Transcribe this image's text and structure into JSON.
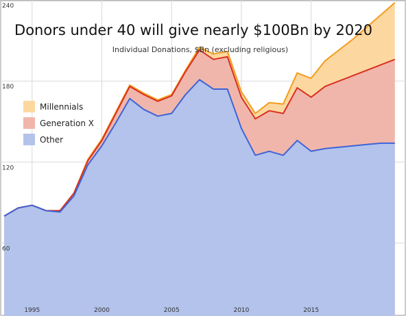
{
  "chart_data": {
    "type": "area",
    "title": "Donors under 40 will give nearly $100Bn by 2020",
    "subtitle": "Individual Donations, $Bn (excluding religious)",
    "xlabel": "",
    "ylabel": "",
    "xlim": [
      1992.7,
      2021.8
    ],
    "ylim": [
      6,
      240
    ],
    "y_ticks": [
      60,
      120,
      180,
      240
    ],
    "x_ticks": [
      1995,
      2000,
      2005,
      2010,
      2015
    ],
    "grid": true,
    "legend_position": "left",
    "x": [
      1993,
      1994,
      1995,
      1996,
      1997,
      1998,
      1999,
      2000,
      2001,
      2002,
      2003,
      2004,
      2005,
      2006,
      2007,
      2008,
      2009,
      2010,
      2011,
      2012,
      2013,
      2014,
      2015,
      2016,
      2017,
      2018,
      2019,
      2020,
      2021
    ],
    "series": [
      {
        "name": "Other",
        "color": "#3f63d6",
        "fill": "#b3c3ec",
        "values": [
          80,
          86,
          88,
          84,
          83,
          95,
          118,
          132,
          149,
          167,
          159,
          154,
          156,
          170,
          181,
          174,
          174,
          145,
          125,
          128,
          125,
          136,
          128,
          130,
          131,
          132,
          133,
          134,
          134
        ]
      },
      {
        "name": "Generation X",
        "color": "#d92f20",
        "fill": "#f1b6ab",
        "values": [
          80,
          86,
          88,
          84,
          84,
          97,
          121,
          136,
          156,
          176,
          170,
          165,
          169,
          187,
          203,
          196,
          198,
          168,
          152,
          158,
          156,
          175,
          168,
          176,
          180,
          184,
          188,
          192,
          196
        ]
      },
      {
        "name": "Millennials",
        "color": "#f39c1b",
        "fill": "#fcd8a0",
        "values": [
          80,
          86,
          88,
          84,
          84,
          97,
          122,
          137,
          157,
          177,
          171,
          166,
          170,
          188,
          205,
          200,
          202,
          172,
          156,
          164,
          163,
          186,
          182,
          195,
          203,
          211,
          220,
          229,
          238
        ]
      }
    ]
  }
}
